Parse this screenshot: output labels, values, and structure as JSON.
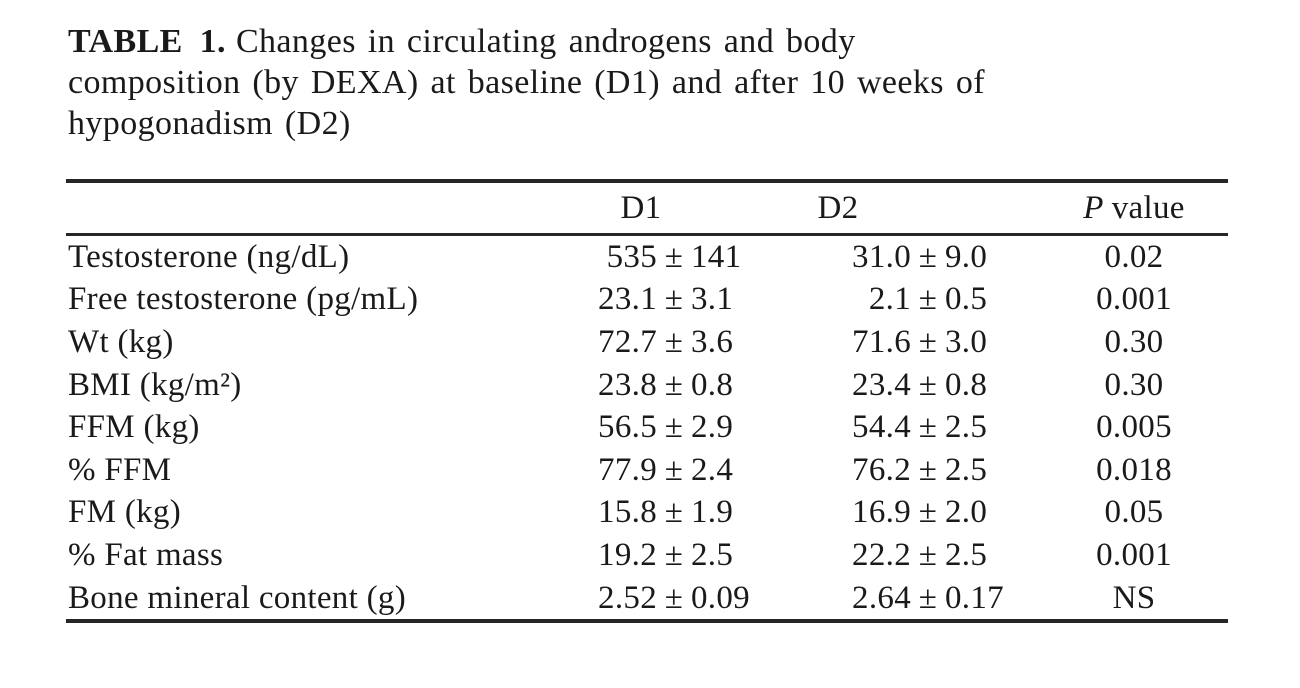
{
  "caption": {
    "label": "TABLE 1.",
    "line1_rest": "Changes in circulating androgens and body",
    "line2": "composition (by DEXA) at baseline (D1) and after 10 weeks of",
    "line3": "hypogonadism (D2)"
  },
  "table": {
    "header": {
      "col1": "",
      "d1": "D1",
      "d2": "D2",
      "p_italic": "P",
      "p_rest": "value"
    },
    "pm": "±",
    "rows": [
      {
        "label": "Testosterone (ng/dL)",
        "d1_mean": "535",
        "d1_sd": "141",
        "d2_mean": "31.0",
        "d2_sd": "9.0",
        "p": "0.02"
      },
      {
        "label": "Free testosterone (pg/mL)",
        "d1_mean": "23.1",
        "d1_sd": "3.1",
        "d2_mean": "2.1",
        "d2_sd": "0.5",
        "p": "0.001"
      },
      {
        "label": "Wt (kg)",
        "d1_mean": "72.7",
        "d1_sd": "3.6",
        "d2_mean": "71.6",
        "d2_sd": "3.0",
        "p": "0.30"
      },
      {
        "label": "BMI (kg/m²)",
        "d1_mean": "23.8",
        "d1_sd": "0.8",
        "d2_mean": "23.4",
        "d2_sd": "0.8",
        "p": "0.30"
      },
      {
        "label": "FFM (kg)",
        "d1_mean": "56.5",
        "d1_sd": "2.9",
        "d2_mean": "54.4",
        "d2_sd": "2.5",
        "p": "0.005"
      },
      {
        "label": "% FFM",
        "d1_mean": "77.9",
        "d1_sd": "2.4",
        "d2_mean": "76.2",
        "d2_sd": "2.5",
        "p": "0.018"
      },
      {
        "label": "FM (kg)",
        "d1_mean": "15.8",
        "d1_sd": "1.9",
        "d2_mean": "16.9",
        "d2_sd": "2.0",
        "p": "0.05"
      },
      {
        "label": "% Fat mass",
        "d1_mean": "19.2",
        "d1_sd": "2.5",
        "d2_mean": "22.2",
        "d2_sd": "2.5",
        "p": "0.001"
      },
      {
        "label": "Bone mineral content (g)",
        "d1_mean": "2.52",
        "d1_sd": "0.09",
        "d2_mean": "2.64",
        "d2_sd": "0.17",
        "p": "NS"
      }
    ]
  },
  "colors": {
    "background": "#ffffff",
    "text": "#1a1a1a",
    "rule": "#262626"
  }
}
